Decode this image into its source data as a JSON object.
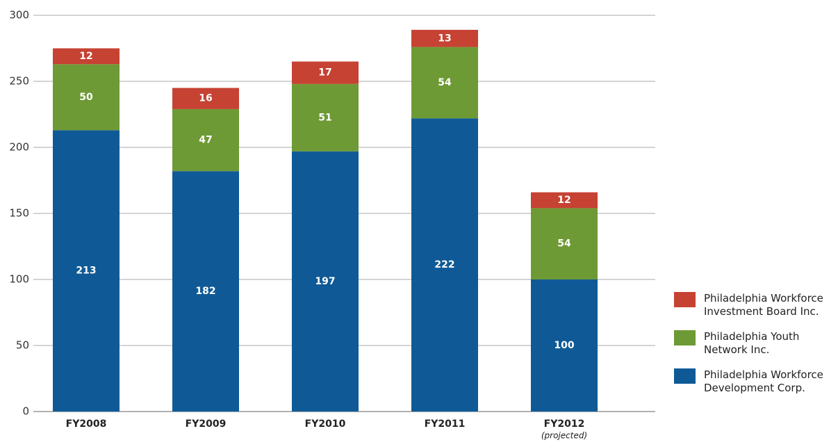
{
  "chart_data": {
    "type": "stacked_bar",
    "categories": [
      "FY2008",
      "FY2009",
      "FY2010",
      "FY2011",
      "FY2012"
    ],
    "category_notes": [
      null,
      null,
      null,
      null,
      "(projected)"
    ],
    "series": [
      {
        "name": "Philadelphia Workforce Development Corp.",
        "color": "#0f5a96",
        "values": [
          213,
          182,
          197,
          222,
          100
        ]
      },
      {
        "name": "Philadelphia Youth Network Inc.",
        "color": "#6e9a35",
        "values": [
          50,
          47,
          51,
          54,
          54
        ]
      },
      {
        "name": "Philadelphia Workforce Investment Board Inc.",
        "color": "#c64233",
        "values": [
          12,
          16,
          17,
          13,
          12
        ]
      }
    ],
    "ylim": [
      0,
      300
    ],
    "yticks": [
      0,
      50,
      100,
      150,
      200,
      250,
      300
    ],
    "grid": true
  }
}
